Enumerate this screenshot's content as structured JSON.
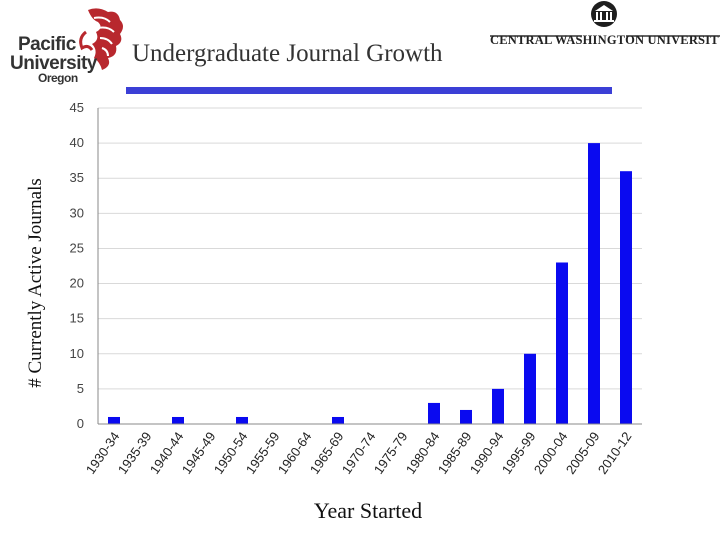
{
  "header": {
    "left_logo": {
      "line1": "Pacific",
      "line2": "University",
      "line3": "Oregon"
    },
    "title": "Undergraduate Journal Growth",
    "right_logo": {
      "text": "CENTRAL WASHINGTON UNIVERSITY"
    }
  },
  "colors": {
    "bar": "#0a0af0",
    "title_rule": "#3b3fd6",
    "logo_red": "#b8282e"
  },
  "chart_data": {
    "type": "bar",
    "title": "",
    "xlabel": "Year Started",
    "ylabel": "# Currently Active Journals",
    "ylim": [
      0,
      45
    ],
    "yticks": [
      0,
      5,
      10,
      15,
      20,
      25,
      30,
      35,
      40,
      45
    ],
    "grid": true,
    "categories": [
      "1930-34",
      "1935-39",
      "1940-44",
      "1945-49",
      "1950-54",
      "1955-59",
      "1960-64",
      "1965-69",
      "1970-74",
      "1975-79",
      "1980-84",
      "1985-89",
      "1990-94",
      "1995-99",
      "2000-04",
      "2005-09",
      "2010-12"
    ],
    "values": [
      1,
      0,
      1,
      0,
      1,
      0,
      0,
      1,
      0,
      0,
      3,
      2,
      5,
      10,
      23,
      40,
      36
    ]
  }
}
